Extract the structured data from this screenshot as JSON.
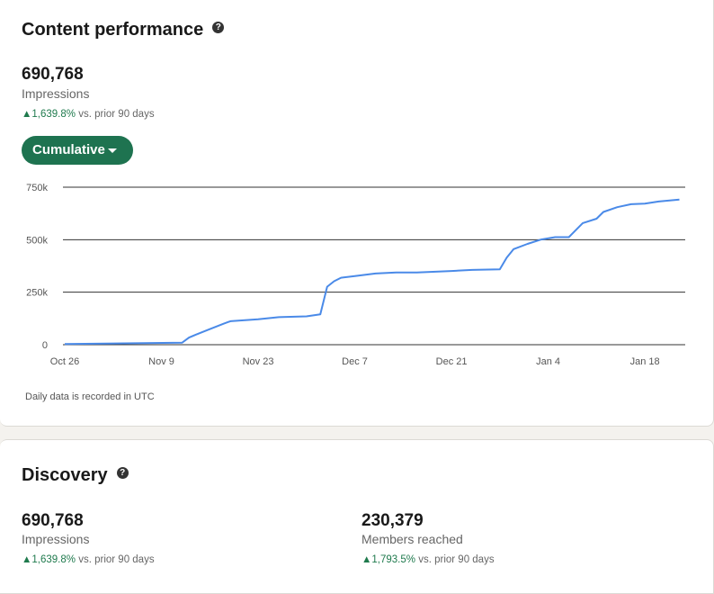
{
  "content_performance": {
    "title": "Content performance",
    "help_icon": "question-circle-icon",
    "impressions_value": "690,768",
    "impressions_label": "Impressions",
    "delta_value": "1,639.8%",
    "delta_text": "vs. prior 90 days",
    "dropdown_label": "Cumulative",
    "note": "Daily data is recorded in UTC"
  },
  "discovery": {
    "title": "Discovery",
    "help_icon": "question-circle-icon",
    "metrics": [
      {
        "value": "690,768",
        "label": "Impressions",
        "delta": "1,639.8%",
        "delta_text": "vs. prior 90 days"
      },
      {
        "value": "230,379",
        "label": "Members reached",
        "delta": "1,793.5%",
        "delta_text": "vs. prior 90 days"
      }
    ]
  },
  "colors": {
    "line": "#4a8ae8",
    "accent_green": "#1e7350",
    "delta_green": "#1f7a4d"
  },
  "chart_data": {
    "type": "line",
    "title": "",
    "xlabel": "",
    "ylabel": "",
    "ylim": [
      0,
      750000
    ],
    "y_ticks": [
      {
        "value": 0,
        "label": "0"
      },
      {
        "value": 250000,
        "label": "250k"
      },
      {
        "value": 500000,
        "label": "500k"
      },
      {
        "value": 750000,
        "label": "750k"
      }
    ],
    "x_ticks": [
      "Oct 26",
      "Nov 9",
      "Nov 23",
      "Dec 7",
      "Dec 21",
      "Jan 4",
      "Jan 18"
    ],
    "grid": "horizontal",
    "series": [
      {
        "x": [
          "Oct 26",
          "Nov 12",
          "Nov 13",
          "Nov 14",
          "Nov 16",
          "Nov 18",
          "Nov 19",
          "Nov 23",
          "Nov 26",
          "Nov 30",
          "Dec 2",
          "Dec 3",
          "Dec 4",
          "Dec 5",
          "Dec 7",
          "Dec 10",
          "Dec 13",
          "Dec 16",
          "Dec 21",
          "Dec 24",
          "Dec 28",
          "Dec 29",
          "Dec 30",
          "Jan 1",
          "Jan 3",
          "Jan 5",
          "Jan 7",
          "Jan 9",
          "Jan 11",
          "Jan 12",
          "Jan 14",
          "Jan 16",
          "Jan 18",
          "Jan 20",
          "Jan 23"
        ],
        "y": [
          3000,
          10000,
          34000,
          48000,
          74000,
          100000,
          112000,
          121000,
          131000,
          135000,
          145000,
          276000,
          302000,
          319000,
          327000,
          339000,
          344000,
          344000,
          351000,
          356000,
          359000,
          415000,
          455000,
          480000,
          501000,
          512000,
          512000,
          579000,
          600000,
          632000,
          655000,
          669000,
          672000,
          682000,
          690768
        ]
      }
    ]
  }
}
